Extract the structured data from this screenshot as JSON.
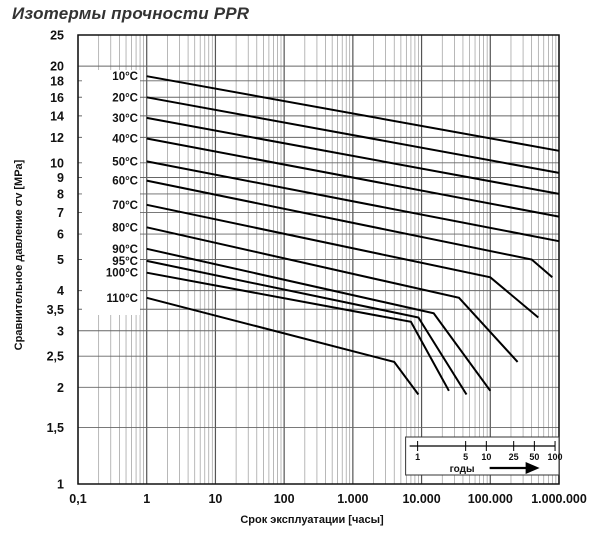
{
  "chart_data": {
    "type": "line",
    "title": "Изотермы прочности PPR",
    "xlabel": "Срок эксплуатации [часы]",
    "ylabel": "Сравнительное давление σv [MPa]",
    "x_scale": "log",
    "y_scale": "log",
    "xlim": [
      0.1,
      1000000
    ],
    "ylim": [
      1,
      25
    ],
    "grid": true,
    "x_ticks": [
      {
        "value": 0.1,
        "label": "0,1"
      },
      {
        "value": 1,
        "label": "1"
      },
      {
        "value": 10,
        "label": "10"
      },
      {
        "value": 100,
        "label": "100"
      },
      {
        "value": 1000,
        "label": "1.000"
      },
      {
        "value": 10000,
        "label": "10.000"
      },
      {
        "value": 100000,
        "label": "100.000"
      },
      {
        "value": 1000000,
        "label": "1.000.000"
      }
    ],
    "y_ticks": [
      {
        "value": 1,
        "label": "1"
      },
      {
        "value": 1.5,
        "label": "1,5"
      },
      {
        "value": 2,
        "label": "2"
      },
      {
        "value": 2.5,
        "label": "2,5"
      },
      {
        "value": 3,
        "label": "3"
      },
      {
        "value": 3.5,
        "label": "3,5"
      },
      {
        "value": 4,
        "label": "4"
      },
      {
        "value": 5,
        "label": "5"
      },
      {
        "value": 6,
        "label": "6"
      },
      {
        "value": 7,
        "label": "7"
      },
      {
        "value": 8,
        "label": "8"
      },
      {
        "value": 9,
        "label": "9"
      },
      {
        "value": 10,
        "label": "10"
      },
      {
        "value": 12,
        "label": "12"
      },
      {
        "value": 14,
        "label": "14"
      },
      {
        "value": 16,
        "label": "16"
      },
      {
        "value": 18,
        "label": "18"
      },
      {
        "value": 20,
        "label": "20"
      },
      {
        "value": 25,
        "label": "25"
      }
    ],
    "years_axis": {
      "label": "годы",
      "ticks": [
        {
          "years": 1,
          "label": "1"
        },
        {
          "years": 5,
          "label": "5"
        },
        {
          "years": 10,
          "label": "10"
        },
        {
          "years": 25,
          "label": "25"
        },
        {
          "years": 50,
          "label": "50"
        },
        {
          "years": 100,
          "label": "100"
        }
      ]
    },
    "series": [
      {
        "name": "10°C",
        "points": [
          [
            1,
            18.6
          ],
          [
            1000000,
            10.9
          ]
        ]
      },
      {
        "name": "20°C",
        "points": [
          [
            1,
            16.0
          ],
          [
            1000000,
            9.3
          ]
        ]
      },
      {
        "name": "30°C",
        "points": [
          [
            1,
            13.8
          ],
          [
            1000000,
            8.0
          ]
        ]
      },
      {
        "name": "40°C",
        "points": [
          [
            1,
            11.9
          ],
          [
            1000000,
            6.8
          ]
        ]
      },
      {
        "name": "50°C",
        "points": [
          [
            1,
            10.1
          ],
          [
            1000000,
            5.7
          ]
        ]
      },
      {
        "name": "60°C",
        "points": [
          [
            1,
            8.8
          ],
          [
            400000,
            5.0
          ],
          [
            800000,
            4.4
          ]
        ]
      },
      {
        "name": "70°C",
        "points": [
          [
            1,
            7.4
          ],
          [
            100000,
            4.4
          ],
          [
            500000,
            3.3
          ]
        ]
      },
      {
        "name": "80°C",
        "points": [
          [
            1,
            6.3
          ],
          [
            35000,
            3.8
          ],
          [
            250000,
            2.4
          ]
        ]
      },
      {
        "name": "90°C",
        "points": [
          [
            1,
            5.4
          ],
          [
            15000,
            3.4
          ],
          [
            100000,
            1.95
          ]
        ]
      },
      {
        "name": "95°C",
        "points": [
          [
            1,
            4.95
          ],
          [
            9000,
            3.3
          ],
          [
            45000,
            1.9
          ]
        ]
      },
      {
        "name": "100°C",
        "points": [
          [
            1,
            4.55
          ],
          [
            7000,
            3.2
          ],
          [
            25000,
            1.95
          ]
        ]
      },
      {
        "name": "110°C",
        "points": [
          [
            1,
            3.8
          ],
          [
            4000,
            2.4
          ],
          [
            9000,
            1.9
          ]
        ]
      }
    ]
  }
}
